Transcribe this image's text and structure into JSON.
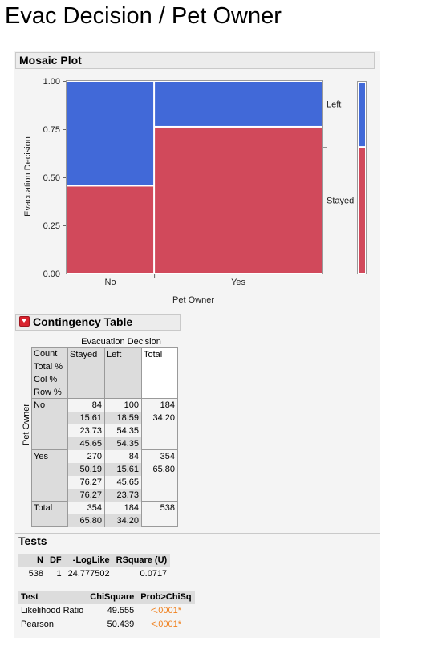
{
  "title": "Evac Decision / Pet Owner",
  "mosaic": {
    "header": "Mosaic Plot",
    "ylabel": "Evacuation Decision",
    "xlabel": "Pet Owner",
    "yticks": [
      "1.00",
      "0.75",
      "0.50",
      "0.25",
      "0.00"
    ],
    "legend": [
      "Left",
      "Stayed"
    ],
    "colors": {
      "Left": "#4169d8",
      "Stayed": "#d1495b"
    }
  },
  "chart_data": {
    "type": "mosaic",
    "title": "Mosaic Plot",
    "xlabel": "Pet Owner",
    "ylabel": "Evacuation Decision",
    "ylim": [
      0,
      1
    ],
    "categories": [
      "No",
      "Yes"
    ],
    "column_share": [
      0.342,
      0.658
    ],
    "series": [
      {
        "name": "Stayed",
        "values": [
          0.4565,
          0.7627
        ]
      },
      {
        "name": "Left",
        "values": [
          0.5435,
          0.2373
        ]
      }
    ],
    "overall": {
      "Stayed": 0.658,
      "Left": 0.342
    }
  },
  "contingency": {
    "header": "Contingency Table",
    "col_var": "Evacuation Decision",
    "row_var": "Pet Owner",
    "stat_labels": [
      "Count",
      "Total %",
      "Col %",
      "Row %"
    ],
    "columns": [
      "Stayed",
      "Left",
      "Total"
    ],
    "rows": [
      {
        "label": "No",
        "Stayed": [
          "84",
          "15.61",
          "23.73",
          "45.65"
        ],
        "Left": [
          "100",
          "18.59",
          "54.35",
          "54.35"
        ],
        "Total": [
          "184",
          "34.20"
        ]
      },
      {
        "label": "Yes",
        "Stayed": [
          "270",
          "50.19",
          "76.27",
          "76.27"
        ],
        "Left": [
          "84",
          "15.61",
          "45.65",
          "23.73"
        ],
        "Total": [
          "354",
          "65.80"
        ]
      },
      {
        "label": "Total",
        "Stayed": [
          "354",
          "65.80"
        ],
        "Left": [
          "184",
          "34.20"
        ],
        "Total": [
          "538"
        ]
      }
    ]
  },
  "tests": {
    "header": "Tests",
    "summary_headers": [
      "N",
      "DF",
      "-LogLike",
      "RSquare (U)"
    ],
    "summary_values": [
      "538",
      "1",
      "24.777502",
      "0.0717"
    ],
    "test_headers": [
      "Test",
      "ChiSquare",
      "Prob>ChiSq"
    ],
    "test_rows": [
      [
        "Likelihood Ratio",
        "49.555",
        "<.0001*"
      ],
      [
        "Pearson",
        "50.439",
        "<.0001*"
      ]
    ]
  }
}
